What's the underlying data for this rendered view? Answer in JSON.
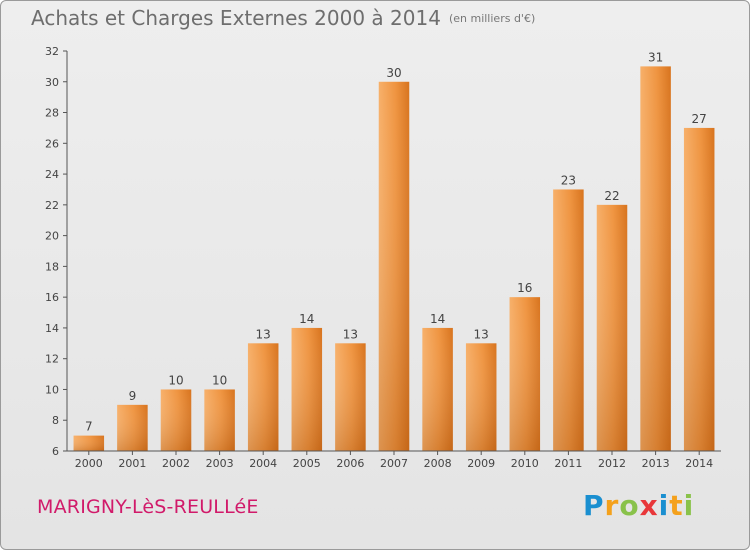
{
  "chart_data": {
    "type": "bar",
    "title": "Achats et Charges Externes 2000 à 2014",
    "subtitle": "(en milliers d'€)",
    "categories": [
      "2000",
      "2001",
      "2002",
      "2003",
      "2004",
      "2005",
      "2006",
      "2007",
      "2008",
      "2009",
      "2010",
      "2011",
      "2012",
      "2013",
      "2014"
    ],
    "values": [
      7,
      9,
      10,
      10,
      13,
      14,
      13,
      30,
      14,
      13,
      16,
      23,
      22,
      31,
      27
    ],
    "ylim": [
      6,
      32
    ],
    "yticks": [
      6,
      8,
      10,
      12,
      14,
      16,
      18,
      20,
      22,
      24,
      26,
      28,
      30,
      32
    ],
    "grid": false,
    "xlabel": "",
    "ylabel": "",
    "bar_color": "#e8842f"
  },
  "footer": {
    "town": "MARIGNY-LèS-REULLéE",
    "logo_letters": [
      {
        "ch": "P",
        "color": "#1a8fd0"
      },
      {
        "ch": "r",
        "color": "#f4a11c"
      },
      {
        "ch": "o",
        "color": "#89c24a"
      },
      {
        "ch": "x",
        "color": "#e8373a"
      },
      {
        "ch": "i",
        "color": "#1a8fd0"
      },
      {
        "ch": "t",
        "color": "#f4a11c"
      },
      {
        "ch": "i",
        "color": "#89c24a"
      }
    ]
  }
}
